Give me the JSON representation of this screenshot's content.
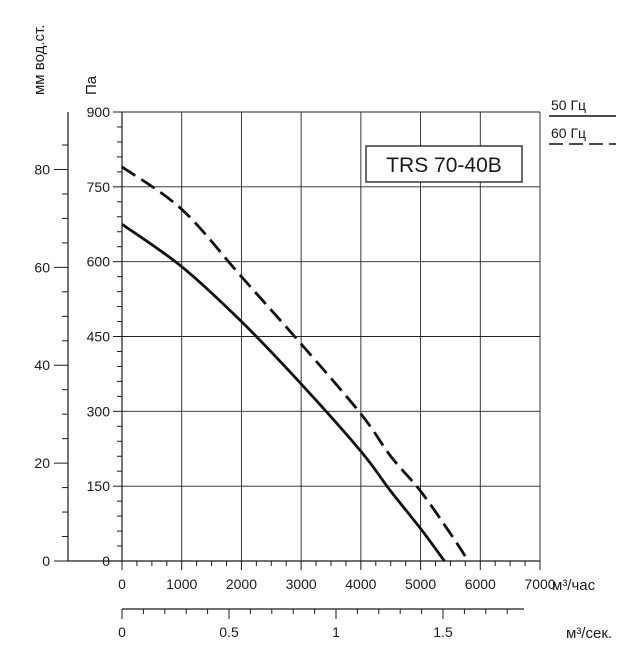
{
  "chart_data": {
    "type": "line",
    "title": "TRS 70-40B",
    "xlabel": "м³/час",
    "x2label": "м³/сек.",
    "ylabel_left": "мм вод.ст.",
    "ylabel_right": "Па",
    "xlim": [
      0,
      7000
    ],
    "ylim": [
      0,
      900
    ],
    "x_ticks": [
      "0",
      "1000",
      "2000",
      "3000",
      "4000",
      "5000",
      "6000",
      "7000"
    ],
    "x2_ticks": [
      "0",
      "0.5",
      "1",
      "1.5"
    ],
    "x2_tick_values": [
      0,
      0.5,
      1,
      1.5
    ],
    "y_pa_ticks": [
      "0",
      "150",
      "300",
      "450",
      "600",
      "750",
      "900"
    ],
    "y_mm_ticks": [
      "0",
      "20",
      "40",
      "60",
      "80"
    ],
    "y_mm_tick_values": [
      0,
      20,
      40,
      60,
      80
    ],
    "grid": true,
    "legend_position": "top-right",
    "series": [
      {
        "name": "50 Гц",
        "style": "solid",
        "color": "#111111",
        "points": [
          [
            0,
            675
          ],
          [
            1000,
            590
          ],
          [
            2000,
            480
          ],
          [
            3000,
            355
          ],
          [
            4000,
            220
          ],
          [
            4500,
            140
          ],
          [
            5000,
            65
          ],
          [
            5400,
            0
          ]
        ]
      },
      {
        "name": "60 Гц",
        "style": "dashed",
        "color": "#111111",
        "points": [
          [
            0,
            790
          ],
          [
            1000,
            705
          ],
          [
            2000,
            570
          ],
          [
            3000,
            435
          ],
          [
            4000,
            295
          ],
          [
            4500,
            210
          ],
          [
            5000,
            140
          ],
          [
            5500,
            55
          ],
          [
            5800,
            0
          ]
        ]
      }
    ]
  }
}
